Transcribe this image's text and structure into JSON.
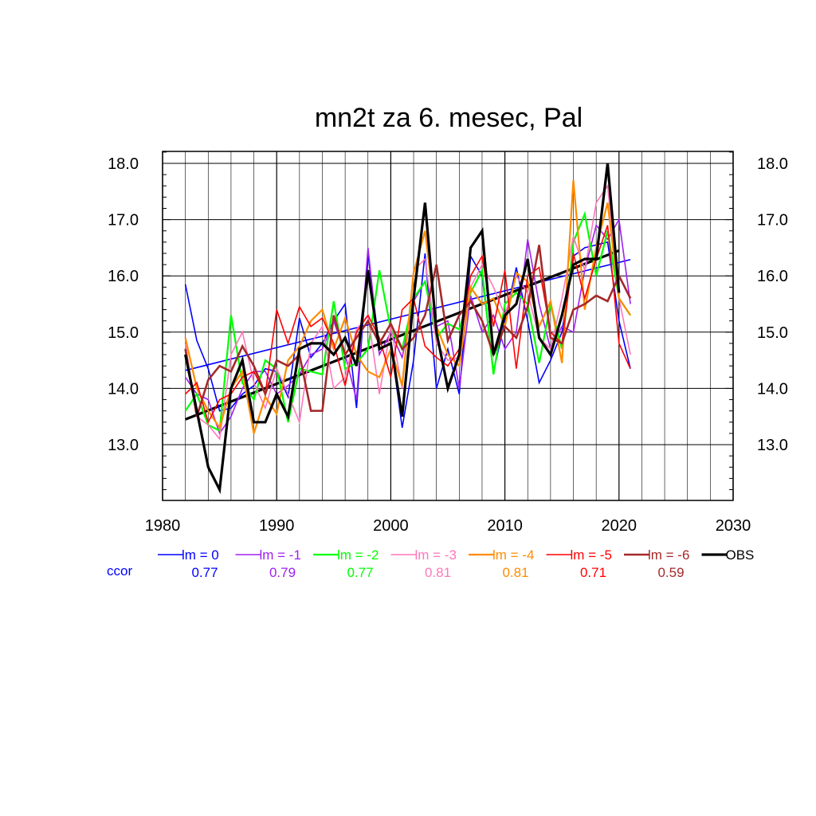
{
  "chart_data": {
    "type": "line",
    "title": "mn2t za 6. mesec, Pal",
    "xlim": [
      1980,
      2030
    ],
    "ylim": [
      12.2,
      18.2
    ],
    "x_ticks": [
      "1980",
      "1990",
      "2000",
      "2010",
      "2020",
      "2030"
    ],
    "y_ticks": [
      "13.0",
      "14.0",
      "15.0",
      "16.0",
      "17.0",
      "18.0"
    ],
    "grid": true,
    "legend_position": "bottom",
    "ccor_label": "ccor",
    "years": [
      1982,
      1983,
      1984,
      1985,
      1986,
      1987,
      1988,
      1989,
      1990,
      1991,
      1992,
      1993,
      1994,
      1995,
      1996,
      1997,
      1998,
      1999,
      2000,
      2001,
      2002,
      2003,
      2004,
      2005,
      2006,
      2007,
      2008,
      2009,
      2010,
      2011,
      2012,
      2013,
      2014,
      2015,
      2016,
      2017,
      2018,
      2019,
      2020,
      2021
    ],
    "series": [
      {
        "name": "lm = 0",
        "ccor": "0.77",
        "color": "#0000ff",
        "width": 1.6,
        "values": [
          15.85,
          14.85,
          14.35,
          13.6,
          13.65,
          13.9,
          14.05,
          14.35,
          14.3,
          13.85,
          15.25,
          14.55,
          14.8,
          15.2,
          15.5,
          13.65,
          16.4,
          14.7,
          14.8,
          13.3,
          14.5,
          16.4,
          14.0,
          14.7,
          13.9,
          16.35,
          16.0,
          14.3,
          15.2,
          16.15,
          15.2,
          14.1,
          14.5,
          15.0,
          16.35,
          16.5,
          16.55,
          16.6,
          15.2,
          14.35
        ]
      },
      {
        "name": "lm = -1",
        "ccor": "0.79",
        "color": "#a020f0",
        "width": 1.6,
        "values": [
          14.2,
          13.9,
          13.8,
          13.2,
          13.5,
          14.0,
          14.3,
          14.3,
          13.9,
          14.05,
          14.25,
          14.6,
          14.7,
          15.2,
          14.6,
          13.8,
          16.5,
          14.6,
          15.0,
          14.55,
          15.55,
          15.9,
          15.1,
          15.2,
          14.0,
          15.65,
          15.0,
          15.3,
          14.7,
          15.0,
          16.65,
          15.5,
          14.7,
          15.1,
          15.0,
          16.1,
          16.9,
          16.65,
          17.0,
          15.5
        ]
      },
      {
        "name": "lm = -2",
        "ccor": "0.77",
        "color": "#00ff00",
        "width": 2.2,
        "values": [
          13.6,
          13.9,
          13.35,
          13.25,
          15.3,
          14.1,
          13.8,
          14.5,
          14.35,
          13.4,
          14.35,
          14.3,
          14.25,
          15.55,
          14.35,
          14.45,
          14.7,
          16.1,
          15.05,
          14.7,
          15.6,
          15.9,
          14.9,
          15.15,
          15.05,
          15.7,
          16.1,
          14.25,
          15.5,
          15.7,
          15.5,
          14.45,
          15.5,
          14.7,
          16.6,
          17.1,
          16.0,
          16.8,
          15.6,
          15.3
        ]
      },
      {
        "name": "lm = -3",
        "ccor": "0.81",
        "color": "#ff77bb",
        "width": 1.6,
        "values": [
          14.8,
          13.5,
          13.35,
          13.1,
          14.6,
          15.0,
          14.1,
          13.65,
          14.35,
          13.9,
          13.4,
          14.8,
          15.1,
          14.0,
          14.2,
          15.05,
          15.3,
          13.9,
          15.1,
          14.0,
          16.1,
          16.3,
          14.8,
          14.5,
          14.55,
          15.8,
          16.2,
          15.8,
          15.3,
          16.0,
          15.7,
          14.9,
          14.7,
          15.6,
          16.7,
          16.1,
          17.3,
          17.6,
          15.6,
          14.6
        ]
      },
      {
        "name": "lm = -4",
        "ccor": "0.81",
        "color": "#ff8c00",
        "width": 2.2,
        "values": [
          14.9,
          14.0,
          13.6,
          13.3,
          14.0,
          14.3,
          13.2,
          13.85,
          13.55,
          14.5,
          14.75,
          15.2,
          15.4,
          14.7,
          15.25,
          14.6,
          14.3,
          14.2,
          14.7,
          14.05,
          16.05,
          16.8,
          15.1,
          14.6,
          14.4,
          15.8,
          15.5,
          15.6,
          15.1,
          16.05,
          15.9,
          15.1,
          15.55,
          14.45,
          17.7,
          15.4,
          16.5,
          17.3,
          15.6,
          15.3
        ]
      },
      {
        "name": "lm = -5",
        "ccor": "0.71",
        "color": "#ff0000",
        "width": 1.6,
        "values": [
          13.9,
          14.1,
          13.4,
          13.8,
          13.9,
          14.2,
          14.3,
          13.9,
          15.4,
          14.8,
          15.45,
          15.1,
          15.25,
          14.8,
          14.05,
          15.0,
          15.3,
          14.9,
          14.2,
          15.4,
          15.6,
          14.75,
          14.55,
          14.4,
          14.7,
          16.0,
          16.35,
          15.1,
          16.1,
          14.35,
          16.0,
          16.15,
          15.0,
          14.8,
          16.4,
          15.6,
          16.3,
          16.9,
          14.8,
          14.35
        ]
      },
      {
        "name": "lm = -6",
        "ccor": "0.59",
        "color": "#a52a2a",
        "width": 2.6,
        "values": [
          14.7,
          13.5,
          14.15,
          14.4,
          14.3,
          14.75,
          14.4,
          13.9,
          14.5,
          14.4,
          14.6,
          13.6,
          13.6,
          15.3,
          14.6,
          14.9,
          15.2,
          14.8,
          15.15,
          14.7,
          14.9,
          15.3,
          16.2,
          14.85,
          15.3,
          15.55,
          15.2,
          14.6,
          15.1,
          14.9,
          15.45,
          16.55,
          14.9,
          14.8,
          15.4,
          15.5,
          15.65,
          15.55,
          16.0,
          15.6
        ]
      },
      {
        "name": "OBS",
        "ccor": "",
        "color": "#000000",
        "width": 3.2,
        "values": [
          14.6,
          13.6,
          12.6,
          12.2,
          14.0,
          14.5,
          13.4,
          13.4,
          13.9,
          13.5,
          14.7,
          14.8,
          14.8,
          14.6,
          14.9,
          14.4,
          16.1,
          14.7,
          14.8,
          13.5,
          15.6,
          17.3,
          15.0,
          14.0,
          14.6,
          16.5,
          16.8,
          14.6,
          15.3,
          15.5,
          16.3,
          14.9,
          14.6,
          15.3,
          16.2,
          16.3,
          16.3,
          18.0,
          15.7,
          null
        ]
      }
    ],
    "trend_lines": [
      {
        "color": "#0000ff",
        "width": 1.6,
        "x": [
          1982,
          2021
        ],
        "y": [
          14.32,
          16.29
        ]
      },
      {
        "color": "#000000",
        "width": 3.2,
        "x": [
          1982,
          2020
        ],
        "y": [
          13.45,
          16.45
        ]
      }
    ]
  }
}
